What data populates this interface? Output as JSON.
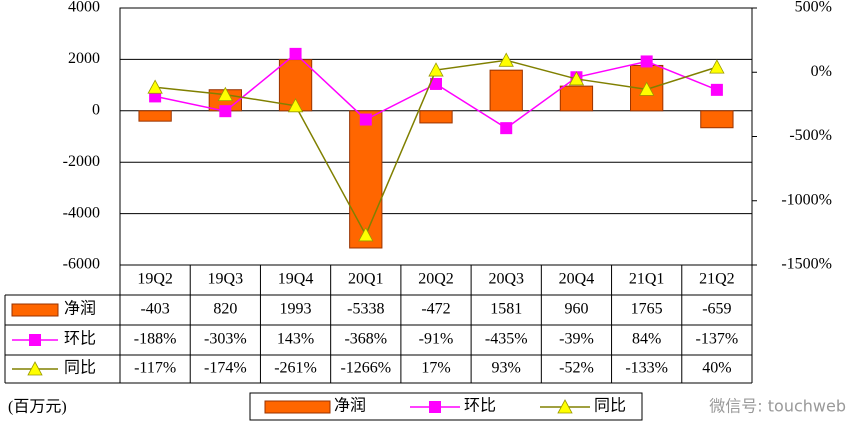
{
  "chart_data": {
    "type": "bar",
    "categories": [
      "19Q2",
      "19Q3",
      "19Q4",
      "20Q1",
      "20Q2",
      "20Q3",
      "20Q4",
      "21Q1",
      "21Q2"
    ],
    "series": [
      {
        "name": "净润",
        "type": "bar",
        "color": "#FF6600",
        "values": [
          -403,
          820,
          1993,
          -5338,
          -472,
          1581,
          960,
          1765,
          -659
        ]
      },
      {
        "name": "环比",
        "type": "line",
        "axis": "y2",
        "color": "#FF00FF",
        "marker": "square",
        "marker_color": "#FF00FF",
        "values": [
          -188,
          -303,
          143,
          -368,
          -91,
          -435,
          -39,
          84,
          -137
        ],
        "value_labels": [
          "-188%",
          "-303%",
          "143%",
          "-368%",
          "-91%",
          "-435%",
          "-39%",
          "84%",
          "-137%"
        ]
      },
      {
        "name": "同比",
        "type": "line",
        "axis": "y2",
        "color": "#808000",
        "marker": "triangle",
        "marker_color": "#FFFF00",
        "values": [
          -117,
          -174,
          -261,
          -1266,
          17,
          93,
          -52,
          -133,
          40
        ],
        "value_labels": [
          "-117%",
          "-174%",
          "-261%",
          "-1266%",
          "17%",
          "93%",
          "-52%",
          "-133%",
          "40%"
        ]
      }
    ],
    "ylim": [
      -6000,
      4000
    ],
    "yticks": [
      -6000,
      -4000,
      -2000,
      0,
      2000,
      4000
    ],
    "y2lim": [
      -1500,
      500
    ],
    "y2ticks": [
      {
        "value": -1500,
        "label": "-1500%"
      },
      {
        "value": -1000,
        "label": "-1000%"
      },
      {
        "value": -500,
        "label": "-500%"
      },
      {
        "value": 0,
        "label": "0%"
      },
      {
        "value": 500,
        "label": "500%"
      }
    ],
    "grid": true,
    "unit_label": "(百万元)",
    "watermark": "微信号: touchweb"
  }
}
